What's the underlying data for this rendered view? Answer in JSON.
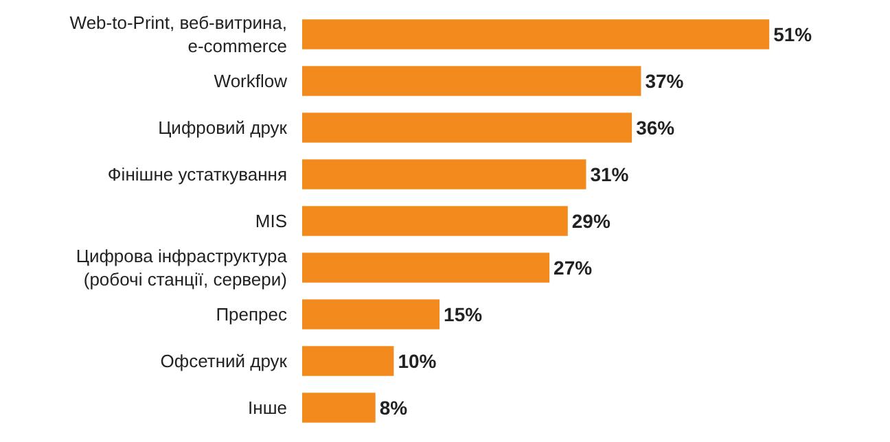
{
  "chart_data": {
    "type": "bar",
    "orientation": "horizontal",
    "categories": [
      "Web-to-Print, веб-витрина,\ne-commerce",
      "Workflow",
      "Цифровий друк",
      "Фінішне устаткування",
      "MIS",
      "Цифрова інфраструктура\n(робочі станції, сервери)",
      "Препрес",
      "Офсетний друк",
      "Інше"
    ],
    "values": [
      51,
      37,
      36,
      31,
      29,
      27,
      15,
      10,
      8
    ],
    "value_labels": [
      "51%",
      "37%",
      "36%",
      "31%",
      "29%",
      "27%",
      "15%",
      "10%",
      "8%"
    ],
    "color": "#f28a1e"
  }
}
